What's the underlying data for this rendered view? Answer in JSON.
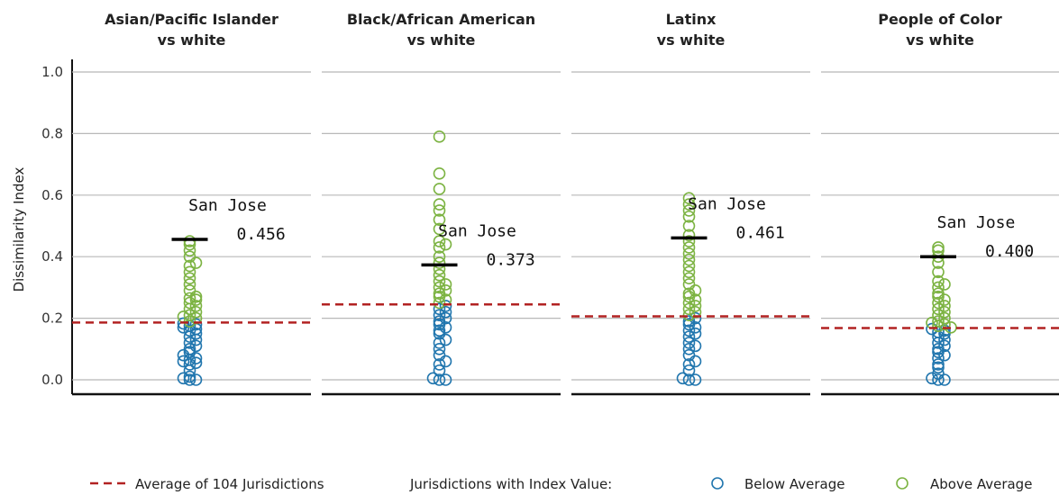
{
  "chart_data": {
    "type": "scatter",
    "ylabel": "Dissimilarity Index",
    "ylim": [
      0,
      1.05
    ],
    "yticks": [
      "0.0",
      "0.2",
      "0.4",
      "0.6",
      "0.8",
      "1.0"
    ],
    "ytick_values": [
      0,
      0.2,
      0.4,
      0.6,
      0.8,
      1.0
    ],
    "grid": true,
    "colors": {
      "below": "#2176ae",
      "above": "#7cb342",
      "average_line": "#b22222",
      "marker": "#000000"
    },
    "legend": {
      "placement": "bottom",
      "average_label": "Average of 104 Jurisdictions",
      "group_label": "Jurisdictions with Index Value:",
      "below_label": "Below Average",
      "above_label": "Above Average"
    },
    "panels": [
      {
        "title_line1": "Asian/Pacific Islander",
        "title_line2": "vs white",
        "average": 0.186,
        "highlight": {
          "name": "San Jose",
          "value": 0.456,
          "value_label": "0.456"
        },
        "values": [
          0.0,
          0.0,
          0.005,
          0.01,
          0.03,
          0.05,
          0.055,
          0.06,
          0.065,
          0.07,
          0.08,
          0.09,
          0.1,
          0.11,
          0.12,
          0.13,
          0.14,
          0.15,
          0.16,
          0.165,
          0.17,
          0.175,
          0.18,
          0.183,
          0.19,
          0.2,
          0.205,
          0.21,
          0.22,
          0.23,
          0.24,
          0.25,
          0.26,
          0.265,
          0.27,
          0.29,
          0.31,
          0.33,
          0.35,
          0.37,
          0.38,
          0.4,
          0.42,
          0.44,
          0.45
        ]
      },
      {
        "title_line1": "Black/African American",
        "title_line2": "vs white",
        "average": 0.245,
        "highlight": {
          "name": "San Jose",
          "value": 0.373,
          "value_label": "0.373"
        },
        "values": [
          0.0,
          0.0,
          0.005,
          0.03,
          0.05,
          0.06,
          0.08,
          0.1,
          0.12,
          0.13,
          0.15,
          0.16,
          0.17,
          0.18,
          0.19,
          0.2,
          0.21,
          0.22,
          0.23,
          0.24,
          0.25,
          0.26,
          0.27,
          0.28,
          0.29,
          0.3,
          0.31,
          0.32,
          0.34,
          0.36,
          0.38,
          0.4,
          0.43,
          0.44,
          0.45,
          0.49,
          0.52,
          0.55,
          0.57,
          0.62,
          0.67,
          0.79
        ]
      },
      {
        "title_line1": "Latinx",
        "title_line2": "vs white",
        "average": 0.206,
        "highlight": {
          "name": "San Jose",
          "value": 0.461,
          "value_label": "0.461"
        },
        "values": [
          0.0,
          0.0,
          0.005,
          0.03,
          0.05,
          0.06,
          0.08,
          0.1,
          0.11,
          0.12,
          0.14,
          0.15,
          0.16,
          0.17,
          0.18,
          0.19,
          0.2,
          0.21,
          0.22,
          0.23,
          0.24,
          0.25,
          0.26,
          0.27,
          0.28,
          0.29,
          0.31,
          0.33,
          0.35,
          0.37,
          0.39,
          0.41,
          0.43,
          0.45,
          0.47,
          0.5,
          0.53,
          0.55,
          0.57,
          0.59
        ]
      },
      {
        "title_line1": "People of Color",
        "title_line2": "vs white",
        "average": 0.168,
        "highlight": {
          "name": "San Jose",
          "value": 0.4,
          "value_label": "0.400"
        },
        "values": [
          0.0,
          0.0,
          0.005,
          0.02,
          0.04,
          0.05,
          0.07,
          0.08,
          0.09,
          0.1,
          0.11,
          0.12,
          0.13,
          0.14,
          0.15,
          0.155,
          0.16,
          0.165,
          0.17,
          0.175,
          0.18,
          0.185,
          0.19,
          0.2,
          0.21,
          0.22,
          0.23,
          0.24,
          0.25,
          0.26,
          0.27,
          0.28,
          0.3,
          0.31,
          0.32,
          0.35,
          0.38,
          0.4,
          0.42,
          0.43
        ]
      }
    ]
  }
}
